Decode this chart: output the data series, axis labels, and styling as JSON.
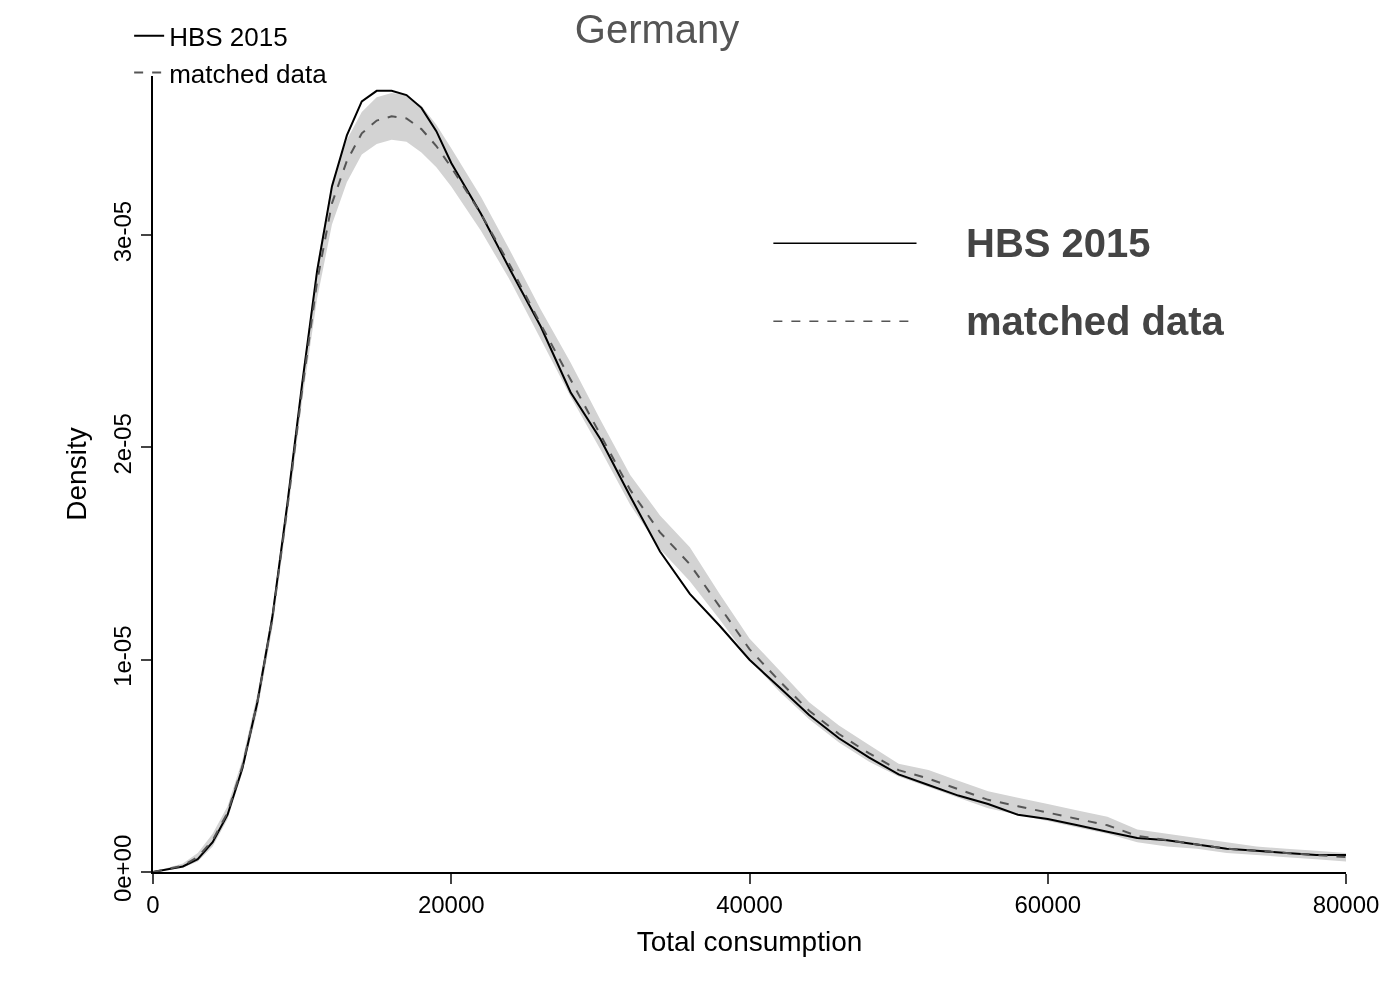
{
  "chart_data": {
    "type": "line",
    "title": "Germany",
    "xlabel": "Total consumption",
    "ylabel": "Density",
    "xlim": [
      0,
      80000
    ],
    "xticks": [
      0,
      20000,
      40000,
      60000,
      80000
    ],
    "ylim": [
      0,
      3.75e-05
    ],
    "yticks": [
      {
        "value": 0,
        "label": "0e+00"
      },
      {
        "value": 1e-05,
        "label": "1e-05"
      },
      {
        "value": 2e-05,
        "label": "2e-05"
      },
      {
        "value": 3e-05,
        "label": "3e-05"
      }
    ],
    "x": [
      0,
      2000,
      3000,
      4000,
      5000,
      6000,
      7000,
      8000,
      9000,
      10000,
      11000,
      12000,
      13000,
      14000,
      15000,
      16000,
      17000,
      18000,
      19000,
      20000,
      22000,
      24000,
      26000,
      28000,
      30000,
      32000,
      34000,
      36000,
      38000,
      40000,
      42000,
      44000,
      46000,
      48000,
      50000,
      52000,
      54000,
      56000,
      58000,
      60000,
      62000,
      64000,
      66000,
      68000,
      70000,
      72000,
      74000,
      76000,
      78000,
      80000
    ],
    "series": [
      {
        "name": "HBS 2015",
        "color": "#000000",
        "line_style": "solid",
        "values": [
          0,
          2.6e-07,
          6e-07,
          1.4e-06,
          2.7e-06,
          4.9e-06,
          8e-06,
          1.2e-05,
          1.73e-05,
          2.3e-05,
          2.83e-05,
          3.23e-05,
          3.47e-05,
          3.63e-05,
          3.68e-05,
          3.68e-05,
          3.66e-05,
          3.6e-05,
          3.49e-05,
          3.34e-05,
          3.1e-05,
          2.83e-05,
          2.57e-05,
          2.26e-05,
          2.04e-05,
          1.77e-05,
          1.51e-05,
          1.31e-05,
          1.16e-05,
          1e-05,
          8.7e-06,
          7.4e-06,
          6.3e-06,
          5.4e-06,
          4.6e-06,
          4.1e-06,
          3.6e-06,
          3.2e-06,
          2.7e-06,
          2.5e-06,
          2.2e-06,
          1.9e-06,
          1.6e-06,
          1.5e-06,
          1.3e-06,
          1.1e-06,
          1e-06,
          9e-07,
          8e-07,
          8e-07
        ]
      },
      {
        "name": "matched data",
        "color": "#555555",
        "line_style": "dashed",
        "values": [
          0,
          3e-07,
          7e-07,
          1.5e-06,
          2.8e-06,
          5e-06,
          8e-06,
          1.19e-05,
          1.71e-05,
          2.27e-05,
          2.78e-05,
          3.15e-05,
          3.35e-05,
          3.48e-05,
          3.54e-05,
          3.56e-05,
          3.55e-05,
          3.5e-05,
          3.42e-05,
          3.32e-05,
          3.1e-05,
          2.85e-05,
          2.58e-05,
          2.32e-05,
          2.06e-05,
          1.8e-05,
          1.6e-05,
          1.45e-05,
          1.25e-05,
          1.05e-05,
          9e-06,
          7.6e-06,
          6.5e-06,
          5.6e-06,
          4.8e-06,
          4.4e-06,
          3.9e-06,
          3.4e-06,
          3.1e-06,
          2.8e-06,
          2.5e-06,
          2.2e-06,
          1.7e-06,
          1.5e-06,
          1.3e-06,
          1.1e-06,
          1e-06,
          9e-07,
          8e-07,
          7e-07
        ],
        "lower": [
          0,
          2e-07,
          5e-07,
          1.2e-06,
          2.5e-06,
          4.7e-06,
          7.6e-06,
          1.15e-05,
          1.67e-05,
          2.22e-05,
          2.7e-05,
          3.05e-05,
          3.25e-05,
          3.38e-05,
          3.43e-05,
          3.45e-05,
          3.44e-05,
          3.39e-05,
          3.32e-05,
          3.23e-05,
          3.02e-05,
          2.78e-05,
          2.51e-05,
          2.24e-05,
          1.99e-05,
          1.73e-05,
          1.52e-05,
          1.37e-05,
          1.19e-05,
          1e-05,
          8.5e-06,
          7.2e-06,
          6.1e-06,
          5.2e-06,
          4.5e-06,
          4e-06,
          3.5e-06,
          3e-06,
          2.7e-06,
          2.4e-06,
          2.1e-06,
          1.8e-06,
          1.4e-06,
          1.2e-06,
          1.1e-06,
          9e-07,
          8e-07,
          7e-07,
          6e-07,
          5e-07
        ],
        "upper": [
          0,
          4e-07,
          9e-07,
          1.8e-06,
          3.1e-06,
          5.3e-06,
          8.4e-06,
          1.23e-05,
          1.75e-05,
          2.32e-05,
          2.86e-05,
          3.25e-05,
          3.45e-05,
          3.58e-05,
          3.65e-05,
          3.67e-05,
          3.66e-05,
          3.61e-05,
          3.52e-05,
          3.41e-05,
          3.18e-05,
          2.92e-05,
          2.65e-05,
          2.4e-05,
          2.13e-05,
          1.87e-05,
          1.68e-05,
          1.53e-05,
          1.31e-05,
          1.1e-05,
          9.5e-06,
          8e-06,
          6.9e-06,
          6e-06,
          5.1e-06,
          4.8e-06,
          4.3e-06,
          3.8e-06,
          3.5e-06,
          3.2e-06,
          2.9e-06,
          2.6e-06,
          2e-06,
          1.8e-06,
          1.6e-06,
          1.4e-06,
          1.2e-06,
          1.1e-06,
          1e-06,
          9e-07
        ]
      }
    ],
    "legend": "top left",
    "marker": "none",
    "annotations": [
      "HBS 2015",
      "matched data"
    ]
  }
}
